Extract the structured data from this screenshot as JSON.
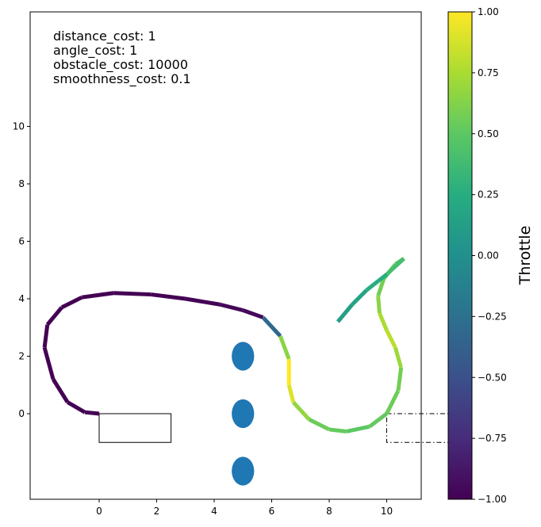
{
  "chart_data": {
    "type": "line",
    "title": "",
    "xlabel": "",
    "ylabel": "",
    "xlim": [
      -3,
      14
    ],
    "ylim": [
      -3,
      14
    ],
    "x_ticks": [
      0,
      2,
      4,
      6,
      8,
      10
    ],
    "y_ticks": [
      0,
      2,
      4,
      6,
      8,
      10
    ],
    "grid": false,
    "annotations": [
      "distance_cost: 1",
      "angle_cost: 1",
      "obstacle_cost: 10000",
      "smoothness_cost: 0.1"
    ],
    "colorbar": {
      "label": "Throttle",
      "range": [
        -1,
        1
      ],
      "ticks": [
        "1.00",
        "0.75",
        "0.50",
        "0.25",
        "0.00",
        "−0.25",
        "−0.50",
        "−0.75",
        "−1.00"
      ],
      "tick_values": [
        1,
        0.75,
        0.5,
        0.25,
        0,
        -0.25,
        -0.5,
        -0.75,
        -1
      ],
      "colormap": "viridis"
    },
    "obstacles": [
      {
        "x": 5,
        "y": 2,
        "rx": 0.5,
        "ry": 0.5,
        "color": "#1f77b4"
      },
      {
        "x": 5,
        "y": 0,
        "rx": 0.5,
        "ry": 0.5,
        "color": "#1f77b4"
      },
      {
        "x": 5,
        "y": -2,
        "rx": 0.5,
        "ry": 0.5,
        "color": "#1f77b4"
      }
    ],
    "start_box": {
      "x": 0,
      "y": -1,
      "width": 2.5,
      "height": 1,
      "style": "solid"
    },
    "goal_box": {
      "x": 10,
      "y": -1,
      "width": 2.5,
      "height": 1,
      "style": "dashdot"
    },
    "path": [
      {
        "x": 0.0,
        "y": 0.0,
        "throttle": -1.0
      },
      {
        "x": -0.5,
        "y": 0.05,
        "throttle": -1.0
      },
      {
        "x": -1.1,
        "y": 0.4,
        "throttle": -1.0
      },
      {
        "x": -1.6,
        "y": 1.2,
        "throttle": -1.0
      },
      {
        "x": -1.9,
        "y": 2.3,
        "throttle": -1.0
      },
      {
        "x": -1.8,
        "y": 3.1,
        "throttle": -1.0
      },
      {
        "x": -1.3,
        "y": 3.7,
        "throttle": -1.0
      },
      {
        "x": -0.6,
        "y": 4.05,
        "throttle": -1.0
      },
      {
        "x": 0.5,
        "y": 4.2,
        "throttle": -1.0
      },
      {
        "x": 1.8,
        "y": 4.15,
        "throttle": -1.0
      },
      {
        "x": 3.0,
        "y": 4.0,
        "throttle": -1.0
      },
      {
        "x": 4.2,
        "y": 3.8,
        "throttle": -0.98
      },
      {
        "x": 5.0,
        "y": 3.6,
        "throttle": -0.96
      },
      {
        "x": 5.7,
        "y": 3.35,
        "throttle": -0.95
      },
      {
        "x": 6.3,
        "y": 2.7,
        "throttle": 0.3
      },
      {
        "x": 6.6,
        "y": 1.9,
        "throttle": 1.0
      },
      {
        "x": 6.6,
        "y": 1.0,
        "throttle": 1.0
      },
      {
        "x": 6.75,
        "y": 0.4,
        "throttle": 0.8
      },
      {
        "x": 7.3,
        "y": -0.2,
        "throttle": 0.55
      },
      {
        "x": 8.0,
        "y": -0.55,
        "throttle": 0.55
      },
      {
        "x": 8.6,
        "y": -0.62,
        "throttle": 0.5
      },
      {
        "x": 9.4,
        "y": -0.45,
        "throttle": 0.5
      },
      {
        "x": 10.0,
        "y": 0.0,
        "throttle": 0.55
      },
      {
        "x": 10.4,
        "y": 0.8,
        "throttle": 0.55
      },
      {
        "x": 10.5,
        "y": 1.6,
        "throttle": 0.6
      },
      {
        "x": 10.3,
        "y": 2.3,
        "throttle": 0.8
      },
      {
        "x": 10.0,
        "y": 2.9,
        "throttle": 0.8
      },
      {
        "x": 9.75,
        "y": 3.5,
        "throttle": 0.7
      },
      {
        "x": 9.7,
        "y": 4.1,
        "throttle": 0.6
      },
      {
        "x": 9.9,
        "y": 4.7,
        "throttle": 0.55
      },
      {
        "x": 10.3,
        "y": 5.2,
        "throttle": 0.5
      },
      {
        "x": 10.6,
        "y": 5.4,
        "throttle": 0.5
      },
      {
        "x": 10.0,
        "y": 4.85,
        "throttle": 0.3
      },
      {
        "x": 9.3,
        "y": 4.3,
        "throttle": 0.2
      },
      {
        "x": 8.8,
        "y": 3.8,
        "throttle": 0.15
      },
      {
        "x": 8.3,
        "y": 3.2,
        "throttle": 0.1
      }
    ]
  }
}
